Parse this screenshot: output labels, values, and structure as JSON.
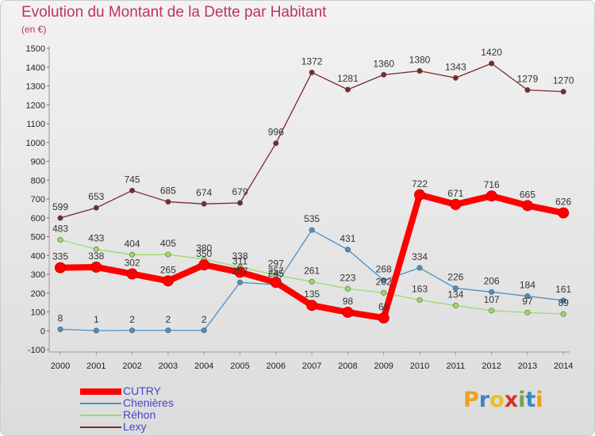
{
  "header": {
    "title": "Evolution du Montant de la Dette par Habitant",
    "subtitle": "(en €)"
  },
  "logo": {
    "text": "Proxiti",
    "letters": [
      {
        "ch": "P",
        "color": "#f0a020"
      },
      {
        "ch": "r",
        "color": "#3a86c8"
      },
      {
        "ch": "o",
        "color": "#e8c020"
      },
      {
        "ch": "x",
        "color": "#d8302a"
      },
      {
        "ch": "i",
        "color": "#6aa84f"
      },
      {
        "ch": "t",
        "color": "#3a86c8"
      },
      {
        "ch": "i",
        "color": "#e8a020"
      }
    ]
  },
  "chart_data": {
    "type": "line",
    "title": "Evolution du Montant de la Dette par Habitant",
    "subtitle": "(en €)",
    "x": [
      "2000",
      "2001",
      "2002",
      "2003",
      "2004",
      "2005",
      "2006",
      "2007",
      "2008",
      "2009",
      "2010",
      "2011",
      "2012",
      "2013",
      "2014"
    ],
    "ylim": [
      -100,
      1500
    ],
    "yticks": [
      -100,
      0,
      100,
      200,
      300,
      400,
      500,
      600,
      700,
      800,
      900,
      1000,
      1100,
      1200,
      1300,
      1400,
      1500
    ],
    "grid": false,
    "legend_position": "bottom-left",
    "series": [
      {
        "name": "CUTRY",
        "color": "#ff0000",
        "emphasis": true,
        "values": [
          335,
          338,
          302,
          265,
          350,
          311,
          257,
          135,
          98,
          68,
          722,
          671,
          716,
          665,
          626
        ]
      },
      {
        "name": "Chenières",
        "color": "#4a90c8",
        "values": [
          8,
          1,
          2,
          2,
          2,
          257,
          245,
          535,
          431,
          268,
          334,
          226,
          206,
          184,
          161
        ]
      },
      {
        "name": "Réhon",
        "color": "#99dd66",
        "values": [
          483,
          433,
          404,
          405,
          380,
          338,
          297,
          261,
          223,
          202,
          163,
          134,
          107,
          97,
          89
        ]
      },
      {
        "name": "Lexy",
        "color": "#7a2a2a",
        "values": [
          599,
          653,
          745,
          685,
          674,
          679,
          996,
          1372,
          1281,
          1360,
          1380,
          1343,
          1420,
          1279,
          1270
        ]
      }
    ],
    "labels": [
      {
        "series": 0,
        "texts": [
          "335",
          "338",
          "302",
          "265",
          "350",
          "311",
          "257",
          "135",
          "98",
          "68",
          "722",
          "671",
          "716",
          "665",
          "626"
        ]
      },
      {
        "series": 1,
        "texts": [
          "8",
          "1",
          "2",
          "2",
          "2",
          "257",
          "245",
          "535",
          "431",
          "268",
          "334",
          "226",
          "206",
          "184",
          "161"
        ]
      },
      {
        "series": 2,
        "texts": [
          "483",
          "433",
          "404",
          "405",
          "380",
          "338",
          "297",
          "261",
          "223",
          "202",
          "163",
          "134",
          "107",
          "97",
          "89"
        ]
      },
      {
        "series": 3,
        "texts": [
          "599",
          "653",
          "745",
          "685",
          "674",
          "679",
          "996",
          "1372",
          "1281",
          "1360",
          "1380",
          "1343",
          "1420",
          "1279",
          "1270"
        ]
      }
    ]
  }
}
